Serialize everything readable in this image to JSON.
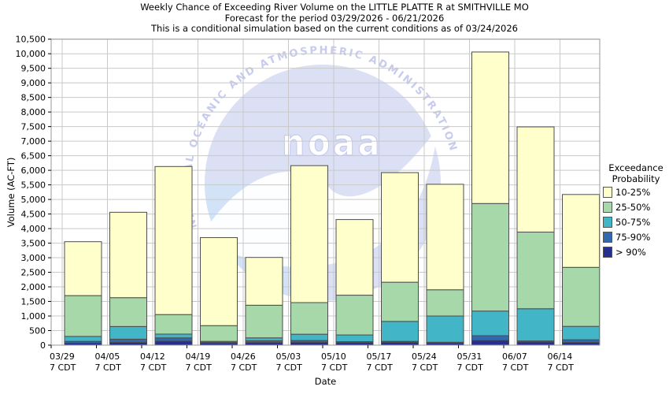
{
  "titles": {
    "line1": "Weekly Chance of Exceeding River Volume on the LITTLE PLATTE R at SMITHVILLE MO",
    "line2": "Forecast for the period 03/29/2026 - 06/21/2026",
    "line3": "This is a conditional simulation based on the current conditions as of 03/24/2026"
  },
  "legend": {
    "title_line1": "Exceedance",
    "title_line2": "Probability"
  },
  "watermark": {
    "ring_text": "NATIONAL OCEANIC AND ATMOSPHERIC ADMINISTRATION",
    "word": "noaa"
  },
  "colors": {
    "grid": "#c9c9c9",
    "plot_border": "#999999",
    "bar_border": "#4d4d4d",
    "watermark_dome": "#dce0f5",
    "watermark_sea": "#d2e3f8",
    "watermark_text": "#c7cbed"
  },
  "chart_data": {
    "type": "bar",
    "stacked": true,
    "title": "Weekly Chance of Exceeding River Volume on the LITTLE PLATTE R at SMITHVILLE MO",
    "xlabel": "Date",
    "ylabel": "Volume (AC-FT)",
    "ylim": [
      0,
      10500
    ],
    "ytick_step": 500,
    "grid": true,
    "legend_position": "right",
    "categories": [
      "03/29",
      "04/05",
      "04/12",
      "04/19",
      "04/26",
      "05/03",
      "05/10",
      "05/17",
      "05/24",
      "05/31",
      "06/07",
      "06/14"
    ],
    "tick_sublabel": "7 CDT",
    "series_note": "cumulative_tops are stack-top values in AC-FT read from the axis; stacking order bottom-to-top is > 90%, 75-90%, 50-75%, 25-50%, 10-25%",
    "series": [
      {
        "name": "10-25%",
        "color": "#ffffcc",
        "cumulative_tops": [
          3550,
          4560,
          6130,
          3690,
          3010,
          6160,
          4310,
          5920,
          5520,
          10060,
          7490,
          5170
        ]
      },
      {
        "name": "25-50%",
        "color": "#a7d8a9",
        "cumulative_tops": [
          1700,
          1630,
          1050,
          670,
          1370,
          1460,
          1715,
          2160,
          1900,
          4860,
          3880,
          2670
        ]
      },
      {
        "name": "50-75%",
        "color": "#42b5c6",
        "cumulative_tops": [
          300,
          640,
          380,
          130,
          250,
          375,
          350,
          815,
          1000,
          1170,
          1250,
          645
        ]
      },
      {
        "name": "75-90%",
        "color": "#3069b0",
        "cumulative_tops": [
          130,
          205,
          250,
          95,
          150,
          160,
          120,
          130,
          100,
          325,
          145,
          185
        ]
      },
      {
        "name": "> 90%",
        "color": "#262e8f",
        "cumulative_tops": [
          75,
          95,
          140,
          70,
          90,
          100,
          90,
          100,
          75,
          165,
          110,
          95
        ]
      }
    ]
  }
}
